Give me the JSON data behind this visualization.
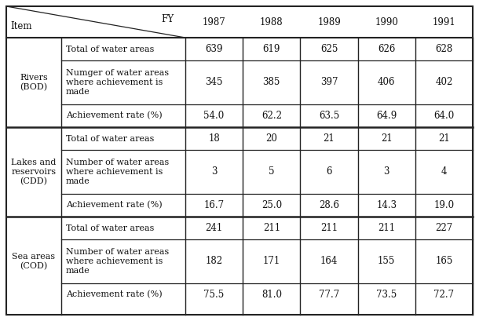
{
  "header_fy": "FY",
  "header_item": "Item",
  "years": [
    "1987",
    "1988",
    "1989",
    "1990",
    "1991"
  ],
  "sections": [
    {
      "row_label": "Rivers\n(BOD)",
      "rows": [
        {
          "label": "Total of water areas",
          "values": [
            "639",
            "619",
            "625",
            "626",
            "628"
          ]
        },
        {
          "label": "Numger of water areas\nwhere achievement is\nmade",
          "values": [
            "345",
            "385",
            "397",
            "406",
            "402"
          ]
        },
        {
          "label": "Achievement rate (%)",
          "values": [
            "54.0",
            "62.2",
            "63.5",
            "64.9",
            "64.0"
          ]
        }
      ]
    },
    {
      "row_label": "Lakes and\nreservoirs\n(CDD)",
      "rows": [
        {
          "label": "Total of water areas",
          "values": [
            "18",
            "20",
            "21",
            "21",
            "21"
          ]
        },
        {
          "label": "Number of water areas\nwhere achievement is\nmade",
          "values": [
            "3",
            "5",
            "6",
            "3",
            "4"
          ]
        },
        {
          "label": "Achievement rate (%)",
          "values": [
            "16.7",
            "25.0",
            "28.6",
            "14.3",
            "19.0"
          ]
        }
      ]
    },
    {
      "row_label": "Sea areas\n(COD)",
      "rows": [
        {
          "label": "Total of water areas",
          "values": [
            "241",
            "211",
            "211",
            "211",
            "227"
          ]
        },
        {
          "label": "Number of water areas\nwhere achievement is\nmade",
          "values": [
            "182",
            "171",
            "164",
            "155",
            "165"
          ]
        },
        {
          "label": "Achievement rate (%)",
          "values": [
            "75.5",
            "81.0",
            "77.7",
            "73.5",
            "72.7"
          ]
        }
      ]
    }
  ],
  "bg_color": "#ffffff",
  "line_color": "#222222",
  "text_color": "#111111",
  "font_size": 8.5,
  "label_font_size": 8.0
}
